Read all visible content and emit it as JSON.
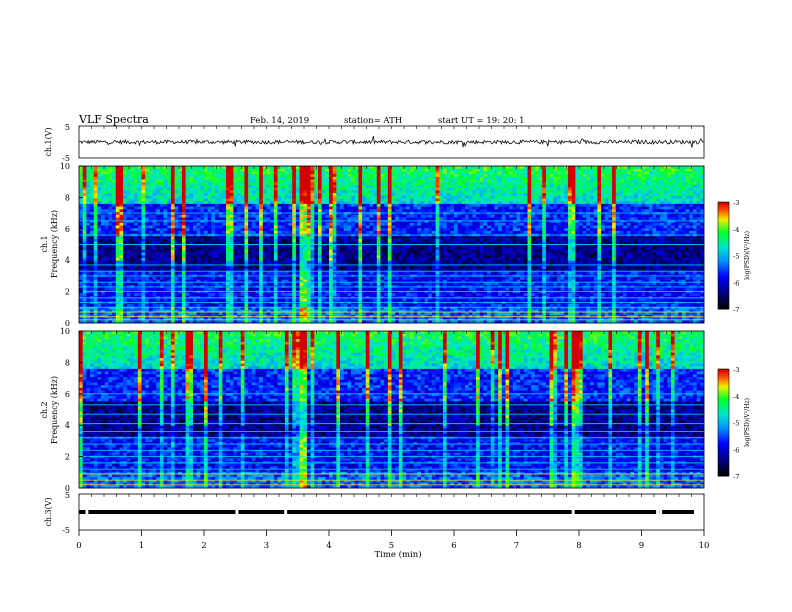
{
  "header": {
    "title": "VLF  Spectra",
    "date": "Feb. 14, 2019",
    "station": "station= ATH",
    "start": "start  UT  =    19: 20: 1"
  },
  "chart_data": [
    {
      "type": "line",
      "name": "ch1-waveform",
      "ylabel": "ch.1(V)",
      "xlim": [
        0,
        10
      ],
      "ylim": [
        -5,
        5
      ],
      "yticks": [
        "5",
        "-5"
      ],
      "baseline": 0,
      "noise_amplitude": 0.6
    },
    {
      "type": "heatmap",
      "name": "ch1-spectrogram",
      "ylabel": "ch.1\nFrequency (kHz)",
      "xlim": [
        0,
        10
      ],
      "ylim": [
        0,
        10
      ],
      "yticks": [
        "0",
        "2",
        "4",
        "6",
        "8",
        "10"
      ],
      "colorbar": {
        "label": "log(PSD)(V²/Hz)",
        "range": [
          -7,
          -3
        ],
        "ticks": [
          "-3",
          "-4",
          "-5",
          "-6",
          "-7"
        ]
      },
      "emission_lines_khz": [
        0.2,
        0.4,
        0.7,
        1.0,
        1.3,
        1.6,
        2.0,
        2.3,
        2.6,
        3.0,
        3.3,
        3.7,
        5.0,
        5.6,
        6.5,
        7.0
      ],
      "strong_event_min": 3.6
    },
    {
      "type": "heatmap",
      "name": "ch2-spectrogram",
      "ylabel": "ch.2\nFrequency (kHz)",
      "xlim": [
        0,
        10
      ],
      "ylim": [
        0,
        10
      ],
      "yticks": [
        "0",
        "2",
        "4",
        "6",
        "8",
        "10"
      ],
      "colorbar": {
        "label": "log(PSD)(V²/Hz)",
        "range": [
          -7,
          -3
        ],
        "ticks": [
          "-3",
          "-4",
          "-5",
          "-6",
          "-7"
        ]
      },
      "emission_lines_khz": [
        0.2,
        0.5,
        0.9,
        1.2,
        1.6,
        2.0,
        2.4,
        2.8,
        3.2,
        3.6,
        4.1,
        4.7,
        5.3,
        6.0
      ],
      "strong_event_min": 3.6
    },
    {
      "type": "line",
      "name": "ch3-waveform",
      "ylabel": "ch.3(V)",
      "xlim": [
        0,
        10
      ],
      "ylim": [
        -5,
        5
      ],
      "yticks": [
        "5",
        "0",
        "-5"
      ],
      "baseline": 0,
      "gaps_min": [
        0.12,
        2.52,
        3.3,
        7.9,
        9.25,
        9.3
      ]
    }
  ],
  "xaxis": {
    "label": "Time  (min)",
    "ticks": [
      "0",
      "1",
      "2",
      "3",
      "4",
      "5",
      "6",
      "7",
      "8",
      "9",
      "10"
    ]
  },
  "colors": {
    "axis": "#000000",
    "trace": "#111111",
    "background": "#ffffff"
  }
}
